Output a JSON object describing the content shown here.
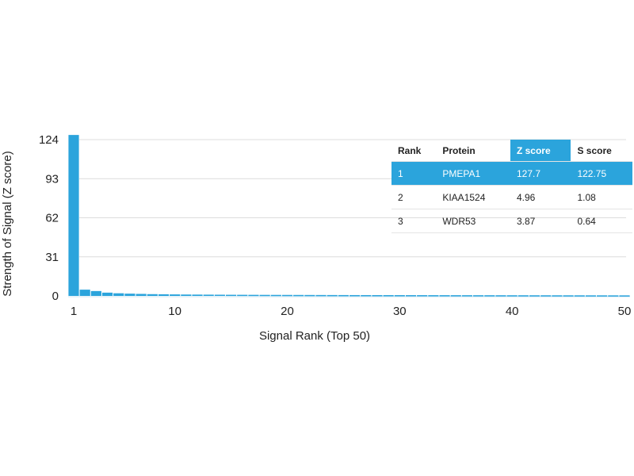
{
  "chart_data": {
    "type": "bar",
    "xlabel": "Signal Rank (Top 50)",
    "ylabel": "Strength of Signal (Z score)",
    "yticks": [
      0,
      31,
      62,
      93,
      124
    ],
    "xticks": [
      1,
      10,
      20,
      30,
      40,
      50
    ],
    "ylim": [
      0,
      124
    ],
    "xlim": [
      1,
      50
    ],
    "grid": true,
    "bar_color": "#2ba4dc",
    "x": [
      1,
      2,
      3,
      4,
      5,
      6,
      7,
      8,
      9,
      10,
      11,
      12,
      13,
      14,
      15,
      16,
      17,
      18,
      19,
      20,
      21,
      22,
      23,
      24,
      25,
      26,
      27,
      28,
      29,
      30,
      31,
      32,
      33,
      34,
      35,
      36,
      37,
      38,
      39,
      40,
      41,
      42,
      43,
      44,
      45,
      46,
      47,
      48,
      49,
      50
    ],
    "values": [
      127.7,
      4.96,
      3.87,
      2.6,
      2.1,
      1.8,
      1.6,
      1.4,
      1.3,
      1.2,
      1.1,
      1.05,
      1.0,
      0.95,
      0.9,
      0.88,
      0.85,
      0.82,
      0.8,
      0.78,
      0.76,
      0.74,
      0.72,
      0.7,
      0.68,
      0.66,
      0.65,
      0.64,
      0.63,
      0.62,
      0.61,
      0.6,
      0.59,
      0.58,
      0.57,
      0.56,
      0.55,
      0.54,
      0.53,
      0.52,
      0.51,
      0.5,
      0.5,
      0.49,
      0.48,
      0.47,
      0.46,
      0.45,
      0.44,
      0.43
    ]
  },
  "table": {
    "headers": [
      "Rank",
      "Protein",
      "Z score",
      "S score"
    ],
    "highlight_color": "#2ba4dc",
    "rows": [
      [
        "1",
        "PMEPA1",
        "127.7",
        "122.75"
      ],
      [
        "2",
        "KIAA1524",
        "4.96",
        "1.08"
      ],
      [
        "3",
        "WDR53",
        "3.87",
        "0.64"
      ]
    ]
  }
}
